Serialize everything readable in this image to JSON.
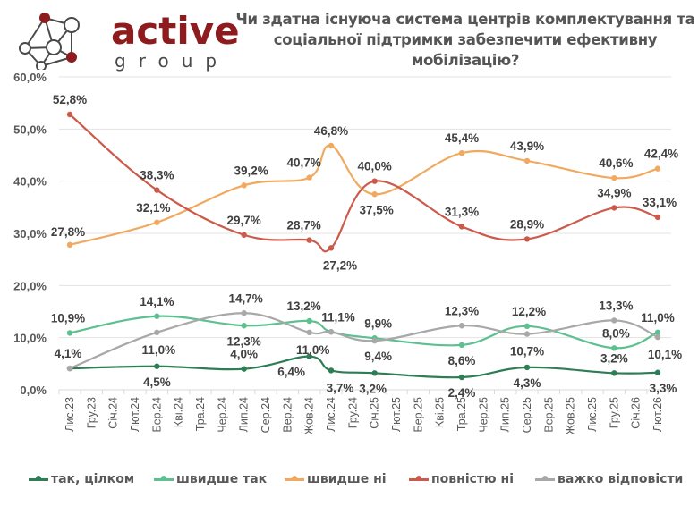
{
  "logo": {
    "word": "active",
    "sub": "group"
  },
  "chart_data": {
    "type": "line",
    "title": "Чи здатна існуюча система центрів комплектування та соціальної підтримки забезпечити ефективну мобілізацію?",
    "xlabel": "",
    "ylabel": "",
    "ylim": [
      0,
      60
    ],
    "yticks": [
      "0,0%",
      "10,0%",
      "20,0%",
      "30,0%",
      "40,0%",
      "50,0%",
      "60,0%"
    ],
    "ytick_values": [
      0,
      10,
      20,
      30,
      40,
      50,
      60
    ],
    "grid": true,
    "legend_position": "bottom",
    "categories": [
      "Лис.23",
      "Гру.23",
      "Січ.24",
      "Лют.24",
      "Бер.24",
      "Кві.24",
      "Тра.24",
      "Чер.24",
      "Лип.24",
      "Сер.24",
      "Вер.24",
      "Жов.24",
      "Лис.24",
      "Гру.24",
      "Січ.25",
      "Лют.25",
      "Бер.25",
      "Кві.25",
      "Тра.25",
      "Чер.25",
      "Лип.25",
      "Сер.25",
      "Вер.25",
      "Жов.25",
      "Лис.25",
      "Гру.25",
      "Січ.26",
      "Лют.26"
    ],
    "series": [
      {
        "name": "так, цілком",
        "color": "#2e7d55",
        "points": [
          {
            "x": "Лис.23",
            "y": 4.1,
            "label": ""
          },
          {
            "x": "Бер.24",
            "y": 4.5,
            "label": "4,5%"
          },
          {
            "x": "Лип.24",
            "y": 4.0,
            "label": "4,0%"
          },
          {
            "x": "Жов.24",
            "y": 6.4,
            "label": "6,4%"
          },
          {
            "x": "Лис.24",
            "y": 3.7,
            "label": "3,7%"
          },
          {
            "x": "Січ.25",
            "y": 3.2,
            "label": "3,2%"
          },
          {
            "x": "Тра.25",
            "y": 2.4,
            "label": "2,4%"
          },
          {
            "x": "Сер.25",
            "y": 4.3,
            "label": "4,3%"
          },
          {
            "x": "Гру.25",
            "y": 3.2,
            "label": "3,2%"
          },
          {
            "x": "Лют.26",
            "y": 3.3,
            "label": "3,3%"
          }
        ]
      },
      {
        "name": "швидше так",
        "color": "#5cc08f",
        "points": [
          {
            "x": "Лис.23",
            "y": 10.9,
            "label": "10,9%"
          },
          {
            "x": "Бер.24",
            "y": 14.1,
            "label": "14,1%"
          },
          {
            "x": "Лип.24",
            "y": 12.3,
            "label": "12,3%"
          },
          {
            "x": "Жов.24",
            "y": 13.2,
            "label": "13,2%"
          },
          {
            "x": "Лис.24",
            "y": 11.1,
            "label": ""
          },
          {
            "x": "Січ.25",
            "y": 9.9,
            "label": "9,9%"
          },
          {
            "x": "Тра.25",
            "y": 8.6,
            "label": "8,6%"
          },
          {
            "x": "Сер.25",
            "y": 12.2,
            "label": "12,2%"
          },
          {
            "x": "Гру.25",
            "y": 8.0,
            "label": "8,0%"
          },
          {
            "x": "Лют.26",
            "y": 11.0,
            "label": "11,0%"
          }
        ]
      },
      {
        "name": "швидше ні",
        "color": "#f0a95e",
        "points": [
          {
            "x": "Лис.23",
            "y": 27.8,
            "label": "27,8%"
          },
          {
            "x": "Бер.24",
            "y": 32.1,
            "label": "32,1%"
          },
          {
            "x": "Лип.24",
            "y": 39.2,
            "label": "39,2%"
          },
          {
            "x": "Жов.24",
            "y": 40.7,
            "label": "40,7%"
          },
          {
            "x": "Лис.24",
            "y": 46.8,
            "label": "46,8%"
          },
          {
            "x": "Січ.25",
            "y": 37.5,
            "label": "37,5%"
          },
          {
            "x": "Тра.25",
            "y": 45.4,
            "label": "45,4%"
          },
          {
            "x": "Сер.25",
            "y": 43.9,
            "label": "43,9%"
          },
          {
            "x": "Гру.25",
            "y": 40.6,
            "label": "40,6%"
          },
          {
            "x": "Лют.26",
            "y": 42.4,
            "label": "42,4%"
          }
        ]
      },
      {
        "name": "повністю ні",
        "color": "#cc5a4a",
        "points": [
          {
            "x": "Лис.23",
            "y": 52.8,
            "label": "52,8%"
          },
          {
            "x": "Бер.24",
            "y": 38.3,
            "label": "38,3%"
          },
          {
            "x": "Лип.24",
            "y": 29.7,
            "label": "29,7%"
          },
          {
            "x": "Жов.24",
            "y": 28.7,
            "label": "28,7%"
          },
          {
            "x": "Лис.24",
            "y": 27.2,
            "label": "27,2%"
          },
          {
            "x": "Січ.25",
            "y": 40.0,
            "label": "40,0%"
          },
          {
            "x": "Тра.25",
            "y": 31.3,
            "label": "31,3%"
          },
          {
            "x": "Сер.25",
            "y": 28.9,
            "label": "28,9%"
          },
          {
            "x": "Гру.25",
            "y": 34.9,
            "label": "34,9%"
          },
          {
            "x": "Лют.26",
            "y": 33.1,
            "label": "33,1%"
          }
        ]
      },
      {
        "name": "важко відповісти",
        "color": "#a8a8a8",
        "points": [
          {
            "x": "Лис.23",
            "y": 4.1,
            "label": "4,1%"
          },
          {
            "x": "Бер.24",
            "y": 11.0,
            "label": "11,0%"
          },
          {
            "x": "Лип.24",
            "y": 14.7,
            "label": "14,7%"
          },
          {
            "x": "Жов.24",
            "y": 11.0,
            "label": "11,0%"
          },
          {
            "x": "Лис.24",
            "y": 11.1,
            "label": "11,1%"
          },
          {
            "x": "Січ.25",
            "y": 9.4,
            "label": "9,4%"
          },
          {
            "x": "Тра.25",
            "y": 12.3,
            "label": "12,3%"
          },
          {
            "x": "Сер.25",
            "y": 10.7,
            "label": "10,7%"
          },
          {
            "x": "Гру.25",
            "y": 13.3,
            "label": "13,3%"
          },
          {
            "x": "Лют.26",
            "y": 10.1,
            "label": "10,1%"
          }
        ]
      }
    ]
  }
}
